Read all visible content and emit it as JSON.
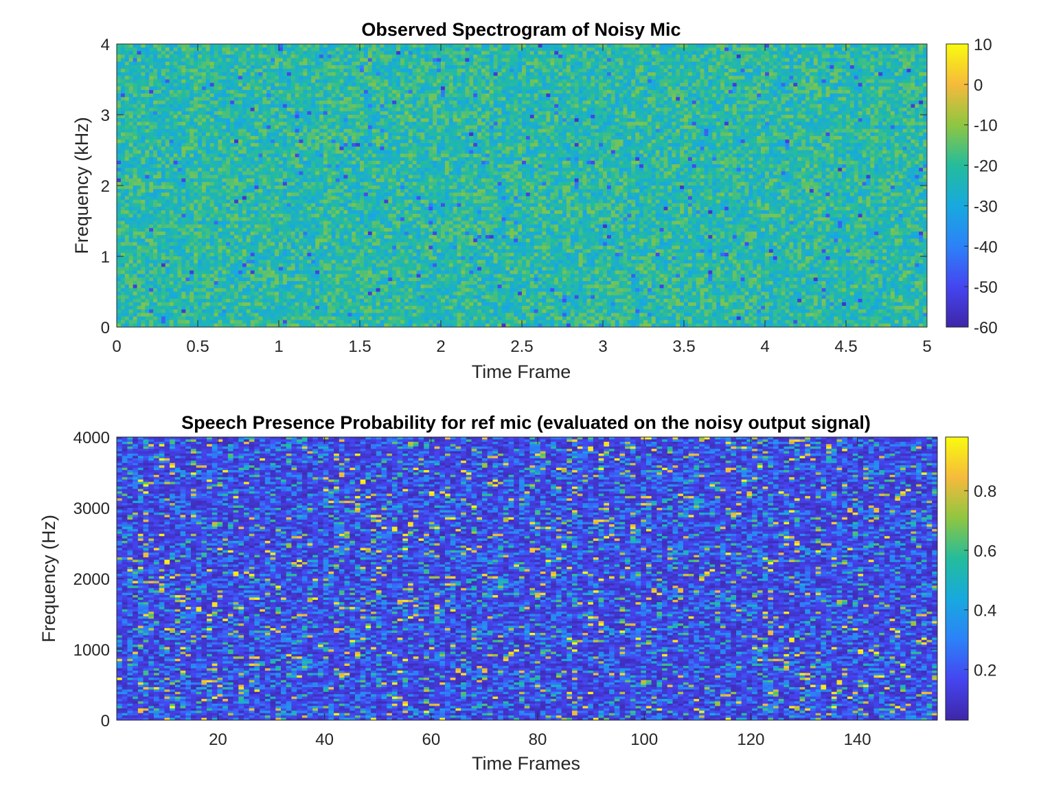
{
  "chart_data": [
    {
      "type": "heatmap",
      "title": "Observed Spectrogram of Noisy Mic",
      "xlabel": "Time Frame",
      "ylabel": "Frequency (kHz)",
      "xlim": [
        0,
        5
      ],
      "ylim": [
        0,
        4
      ],
      "xticks": [
        "0",
        "0.5",
        "1",
        "1.5",
        "2",
        "2.5",
        "3",
        "3.5",
        "4",
        "4.5",
        "5"
      ],
      "yticks": [
        "0",
        "1",
        "2",
        "3",
        "4"
      ],
      "colorbar": {
        "limits": [
          -60,
          10
        ],
        "ticks": [
          "10",
          "0",
          "-10",
          "-20",
          "-30",
          "-40",
          "-50",
          "-60"
        ]
      },
      "colormap": "parula",
      "values_description_range_dB": [
        -60,
        10
      ],
      "grid": false
    },
    {
      "type": "heatmap",
      "title": "Speech Presence Probability for ref mic (evaluated on the noisy output signal)",
      "xlabel": "Time Frames",
      "ylabel": "Frequency (Hz)",
      "xlim": [
        1,
        155
      ],
      "ylim": [
        0,
        4000
      ],
      "xticks": [
        "20",
        "40",
        "60",
        "80",
        "100",
        "120",
        "140"
      ],
      "yticks": [
        "0",
        "1000",
        "2000",
        "3000",
        "4000"
      ],
      "colorbar": {
        "limits": [
          0.03,
          0.98
        ],
        "ticks": [
          "0.8",
          "0.6",
          "0.4",
          "0.2"
        ]
      },
      "colormap": "parula",
      "grid": false
    }
  ]
}
